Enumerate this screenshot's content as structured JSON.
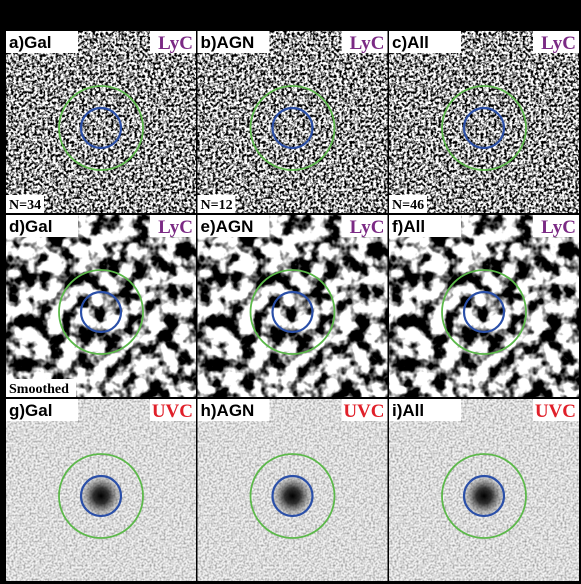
{
  "panels": [
    {
      "label": "a)Gal",
      "band": "LyC",
      "band_color": "#7b2a84",
      "note": "N=34"
    },
    {
      "label": "b)AGN",
      "band": "LyC",
      "band_color": "#7b2a84",
      "note": "N=12"
    },
    {
      "label": "c)All",
      "band": "LyC",
      "band_color": "#7b2a84",
      "note": "N=46"
    },
    {
      "label": "d)Gal",
      "band": "LyC",
      "band_color": "#7b2a84",
      "note": "Smoothed"
    },
    {
      "label": "e)AGN",
      "band": "LyC",
      "band_color": "#7b2a84"
    },
    {
      "label": "f)All",
      "band": "LyC",
      "band_color": "#7b2a84"
    },
    {
      "label": "g)Gal",
      "band": "UVC",
      "band_color": "#e0202a"
    },
    {
      "label": "h)AGN",
      "band": "UVC",
      "band_color": "#e0202a"
    },
    {
      "label": "i)All",
      "band": "UVC",
      "band_color": "#e0202a"
    }
  ]
}
